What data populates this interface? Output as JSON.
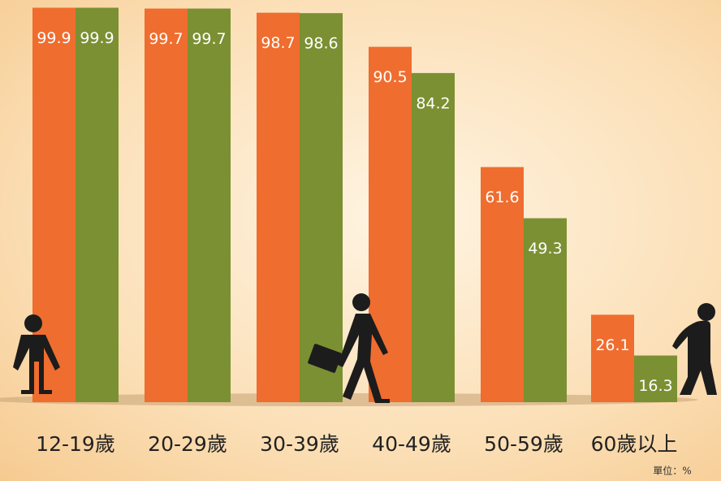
{
  "chart_data": {
    "type": "bar",
    "categories": [
      "12-19歲",
      "20-29歲",
      "30-39歲",
      "40-49歲",
      "50-59歲",
      "60歲以上"
    ],
    "series": [
      {
        "color": "#ef6d2f",
        "values": [
          99.9,
          99.7,
          98.7,
          90.5,
          61.6,
          26.1
        ]
      },
      {
        "color": "#7b9033",
        "values": [
          99.9,
          99.7,
          98.6,
          84.2,
          49.3,
          16.3
        ]
      }
    ],
    "ylim": [
      0,
      100
    ],
    "unit_note": "單位：%"
  }
}
